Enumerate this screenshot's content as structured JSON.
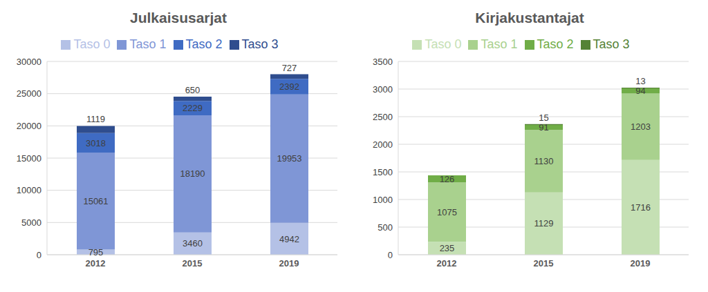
{
  "chart_data": [
    {
      "type": "bar",
      "title": "Julkaisusarjat",
      "categories": [
        "2012",
        "2015",
        "2019"
      ],
      "series": [
        {
          "name": "Taso 0",
          "color": "#b4c1e6",
          "values": [
            795,
            3460,
            4942
          ]
        },
        {
          "name": "Taso 1",
          "color": "#7f96d6",
          "values": [
            15061,
            18190,
            19953
          ]
        },
        {
          "name": "Taso 2",
          "color": "#3f6bc3",
          "values": [
            3018,
            2229,
            2392
          ]
        },
        {
          "name": "Taso 3",
          "color": "#2f4d8e",
          "values": [
            1119,
            650,
            727
          ]
        }
      ],
      "ylim": [
        0,
        30000
      ],
      "yticks": [
        0,
        5000,
        10000,
        15000,
        20000,
        25000,
        30000
      ],
      "grid": true,
      "stacked": true,
      "data_labels": true,
      "legend": "top"
    },
    {
      "type": "bar",
      "title": "Kirjakustantajat",
      "categories": [
        "2012",
        "2015",
        "2019"
      ],
      "series": [
        {
          "name": "Taso 0",
          "color": "#c5e0b4",
          "values": [
            235,
            1129,
            1716
          ]
        },
        {
          "name": "Taso 1",
          "color": "#a9d18e",
          "values": [
            1075,
            1130,
            1203
          ]
        },
        {
          "name": "Taso 2",
          "color": "#70ad47",
          "values": [
            126,
            91,
            94
          ]
        },
        {
          "name": "Taso 3",
          "color": "#548235",
          "values": [
            0,
            15,
            13
          ]
        }
      ],
      "ylim": [
        0,
        3500
      ],
      "yticks": [
        0,
        500,
        1000,
        1500,
        2000,
        2500,
        3000,
        3500
      ],
      "grid": true,
      "stacked": true,
      "data_labels": true,
      "legend": "top"
    }
  ]
}
